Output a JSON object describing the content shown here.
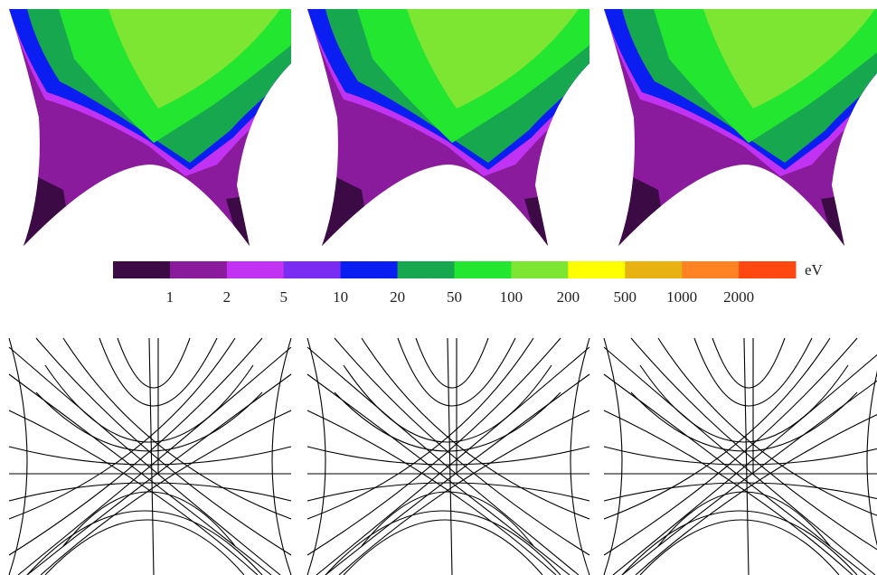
{
  "colorbar": {
    "colors": [
      "#3c0b46",
      "#8a1b9c",
      "#c232f2",
      "#7a2cf2",
      "#0a1ef2",
      "#17a84f",
      "#22e630",
      "#7de633",
      "#ffff00",
      "#e8b212",
      "#ff8322",
      "#ff4712"
    ],
    "labels": [
      1,
      2,
      5,
      10,
      20,
      50,
      100,
      200,
      500,
      1000,
      2000
    ],
    "unit": "eV"
  }
}
